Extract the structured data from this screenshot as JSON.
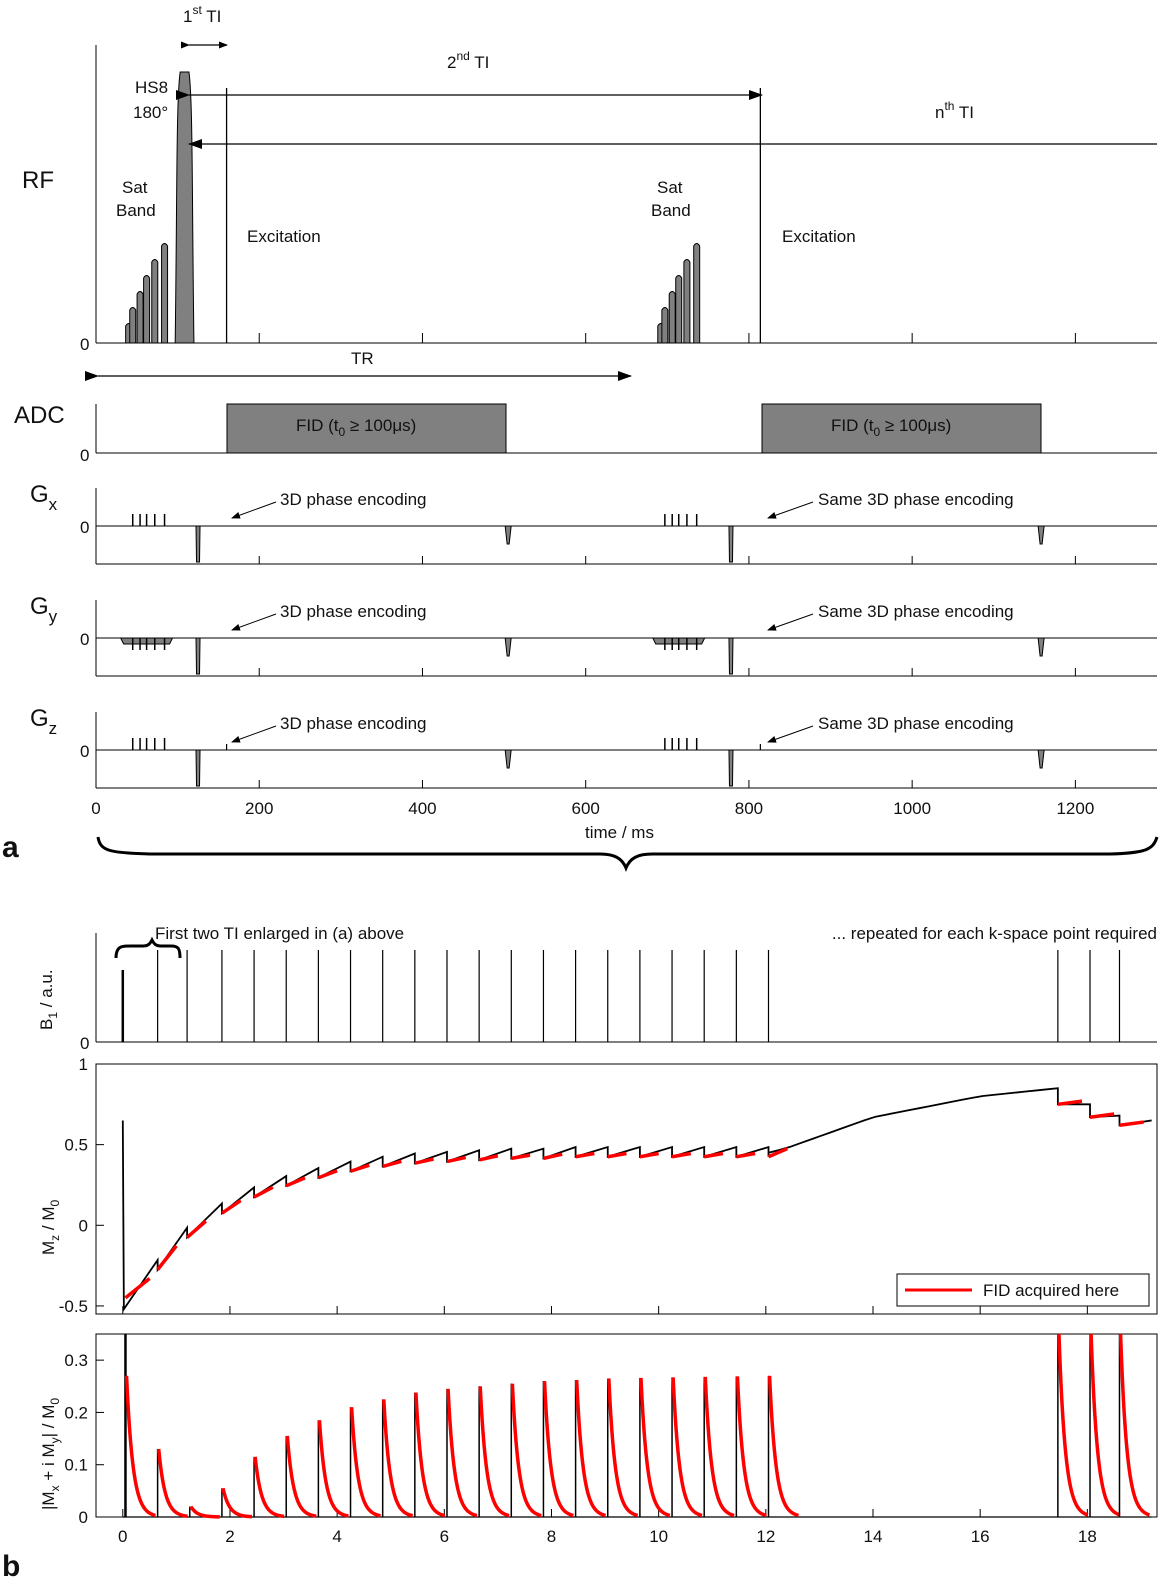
{
  "panel_a": {
    "panel_label": "a",
    "rows": {
      "rf": {
        "label": "RF",
        "zero": "0"
      },
      "adc": {
        "label": "ADC",
        "zero": "0"
      },
      "gx": {
        "label": "G",
        "sub": "x",
        "zero": "0"
      },
      "gy": {
        "label": "G",
        "sub": "y",
        "zero": "0"
      },
      "gz": {
        "label": "G",
        "sub": "z",
        "zero": "0"
      }
    },
    "annotations": {
      "ti1_base": "1",
      "ti1_sup": "st",
      "ti1_tail": " TI",
      "ti2_base": "2",
      "ti2_sup": "nd",
      "ti2_tail": " TI",
      "tin_base": "n",
      "tin_sup": "th",
      "tin_tail": " TI",
      "hs8": "HS8",
      "deg180": "180°",
      "sat": "Sat",
      "band": "Band",
      "excitation": "Excitation",
      "tr": "TR",
      "fid_pre": "FID (t",
      "fid_sub": "0",
      "fid_post": " ≥ 100μs)",
      "phase_enc": "3D phase encoding",
      "same_phase_enc": "Same 3D phase encoding"
    },
    "x_axis": {
      "label": "time / ms",
      "ticks": [
        "0",
        "200",
        "400",
        "600",
        "800",
        "1000",
        "1200"
      ],
      "range": [
        0,
        1300
      ]
    },
    "events_ms": {
      "sat_band_pulses": [
        [
          40,
          45,
          54,
          62,
          72,
          84
        ],
        [
          692,
          697,
          706,
          714,
          724,
          736
        ]
      ],
      "hs8_pulse": [
        97,
        120
      ],
      "excitations": [
        160,
        814
      ],
      "adc_windows": [
        [
          160,
          500
        ],
        [
          814,
          1154
        ]
      ],
      "gradient_spoilers": [
        125,
        778
      ],
      "phase_encode_rewinders": [
        505,
        1158
      ]
    }
  },
  "panel_b": {
    "panel_label": "b",
    "top_annotation_left": "First two TI enlarged in (a) above",
    "top_annotation_right": "... repeated for each k-space point required",
    "legend_label": "FID acquired here",
    "colors": {
      "curve": "#000000",
      "fid": "#ff0000"
    },
    "ylabels": {
      "b1": "B",
      "b1_sub": "1",
      "b1_tail": " / a.u.",
      "mz_pre": "M",
      "mz_sub": "z",
      "mz_post": " / M",
      "mz_sub0": "0",
      "mxy": "|M",
      "mxy_sub_x": "x",
      "mxy_mid": " + i M",
      "mxy_sub_y": "y",
      "mxy_post": "| / M",
      "mxy_sub0": "0"
    },
    "b1_zero": "0",
    "mz_ticks": [
      "1",
      "0.5",
      "0",
      "-0.5"
    ],
    "mxy_ticks": [
      "0.3",
      "0.2",
      "0.1",
      "0"
    ],
    "x_ticks": [
      "0",
      "2",
      "4",
      "6",
      "8",
      "10",
      "12",
      "14",
      "16",
      "18"
    ]
  },
  "chart_data": [
    {
      "type": "line",
      "name": "B1 / a.u.",
      "pulse_times_s": [
        0.0,
        0.65,
        1.2,
        1.85,
        2.45,
        3.05,
        3.65,
        4.25,
        4.85,
        5.45,
        6.05,
        6.65,
        7.25,
        7.85,
        8.45,
        9.05,
        9.65,
        10.25,
        10.85,
        11.45,
        12.05,
        17.45,
        18.05,
        18.6
      ],
      "xlim": [
        -0.5,
        19.3
      ]
    },
    {
      "type": "line",
      "name": "Mz / M0",
      "x_s": [
        0.0,
        0.02,
        0.65,
        1.2,
        1.85,
        2.45,
        3.05,
        3.65,
        4.25,
        4.85,
        5.45,
        6.05,
        6.65,
        7.25,
        7.85,
        8.45,
        9.05,
        9.65,
        10.25,
        10.85,
        11.45,
        12.05,
        12.4,
        14.0,
        16.0,
        17.45,
        18.05,
        18.6,
        19.2
      ],
      "y": [
        0.65,
        -0.52,
        -0.25,
        -0.05,
        0.1,
        0.2,
        0.27,
        0.32,
        0.36,
        0.39,
        0.41,
        0.42,
        0.43,
        0.44,
        0.44,
        0.45,
        0.45,
        0.45,
        0.45,
        0.45,
        0.45,
        0.45,
        0.48,
        0.67,
        0.8,
        0.85,
        0.75,
        0.68,
        0.65
      ],
      "ylim": [
        -0.55,
        1.0
      ],
      "xlim": [
        -0.5,
        19.3
      ]
    },
    {
      "type": "line",
      "name": "|Mx + i My| / M0",
      "peak_times_s": [
        0.05,
        0.65,
        1.25,
        1.85,
        2.45,
        3.05,
        3.65,
        4.25,
        4.85,
        5.45,
        6.05,
        6.65,
        7.25,
        7.85,
        8.45,
        9.05,
        9.65,
        10.25,
        10.85,
        11.45,
        12.05,
        17.45,
        18.05,
        18.6
      ],
      "peak_values": [
        0.27,
        0.13,
        0.02,
        0.055,
        0.115,
        0.155,
        0.185,
        0.21,
        0.225,
        0.238,
        0.245,
        0.25,
        0.255,
        0.26,
        0.262,
        0.265,
        0.266,
        0.267,
        0.268,
        0.269,
        0.27,
        0.35,
        0.35,
        0.35
      ],
      "ylim": [
        0,
        0.35
      ],
      "xlim": [
        -0.5,
        19.3
      ]
    }
  ]
}
